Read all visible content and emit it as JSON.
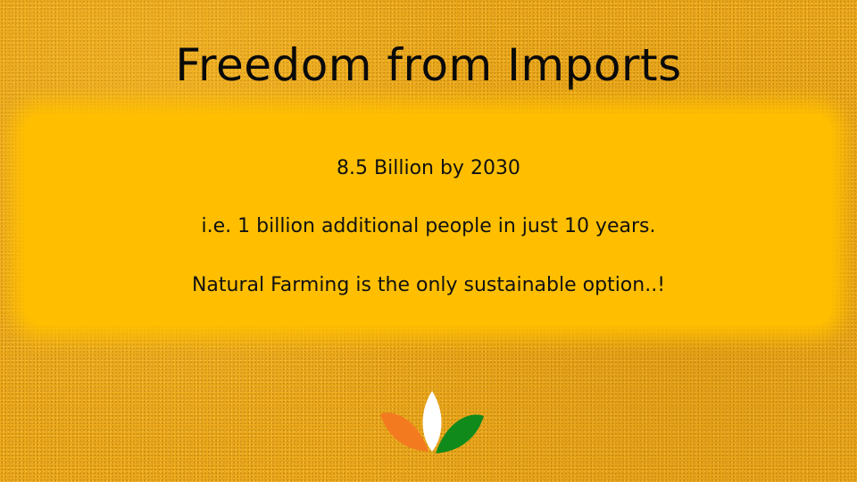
{
  "slide": {
    "title": "Freedom from Imports",
    "lines": [
      "8.5 Billion by 2030",
      "i.e. 1 billion additional people in just 10 years.",
      "Natural Farming is the only sustainable option..!"
    ],
    "colors": {
      "background": "#eeaa1c",
      "panel": "#ffbf00",
      "text": "#111111",
      "logo_saffron": "#f47a20",
      "logo_white": "#ffffff",
      "logo_green": "#118a1c"
    },
    "logo_icon": "three-leaf-logo-icon"
  }
}
